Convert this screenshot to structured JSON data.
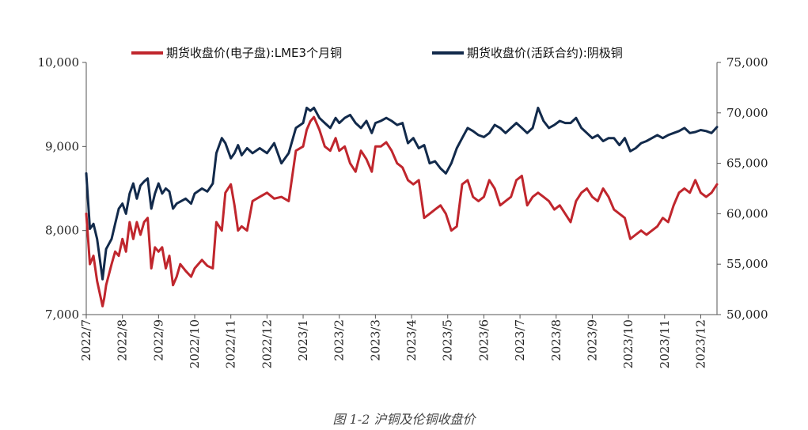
{
  "chart_data": {
    "type": "line",
    "caption": "图 1-2 沪铜及伦铜收盘价",
    "left_axis": {
      "ylim": [
        7000,
        10000
      ],
      "ticks": [
        7000,
        8000,
        9000,
        10000
      ],
      "tick_labels": [
        "7,000",
        "8,000",
        "9,000",
        "10,000"
      ]
    },
    "right_axis": {
      "ylim": [
        50000,
        75000
      ],
      "ticks": [
        50000,
        55000,
        60000,
        65000,
        70000,
        75000
      ],
      "tick_labels": [
        "50,000",
        "55,000",
        "60,000",
        "65,000",
        "70,000",
        "75,000"
      ]
    },
    "x_range": [
      0,
      17.45
    ],
    "x_ticks": [
      0,
      1,
      2,
      3,
      4,
      5,
      6,
      7,
      8,
      9,
      10,
      11,
      12,
      13,
      14,
      15,
      16,
      17
    ],
    "x_tick_labels": [
      "2022/7",
      "2022/8",
      "2022/9",
      "2022/10",
      "2022/11",
      "2022/12",
      "2023/1",
      "2023/2",
      "2023/3",
      "2023/4",
      "2023/5",
      "2023/6",
      "2023/7",
      "2023/8",
      "2023/9",
      "2023/10",
      "2023/11",
      "2023/12"
    ],
    "series": [
      {
        "name": "期货收盘价(电子盘):LME3个月铜",
        "axis": "left",
        "color": "#c0262d",
        "x": [
          0,
          0.1,
          0.2,
          0.3,
          0.45,
          0.5,
          0.55,
          0.7,
          0.8,
          0.9,
          1.0,
          1.1,
          1.2,
          1.3,
          1.4,
          1.5,
          1.6,
          1.7,
          1.8,
          1.9,
          2.0,
          2.1,
          2.2,
          2.3,
          2.4,
          2.5,
          2.6,
          2.75,
          2.9,
          3.0,
          3.2,
          3.35,
          3.5,
          3.6,
          3.75,
          3.85,
          4.0,
          4.1,
          4.2,
          4.3,
          4.45,
          4.6,
          4.8,
          5.0,
          5.2,
          5.4,
          5.6,
          5.8,
          6.0,
          6.1,
          6.2,
          6.3,
          6.45,
          6.6,
          6.75,
          6.9,
          7.0,
          7.15,
          7.3,
          7.45,
          7.6,
          7.75,
          7.9,
          8.0,
          8.15,
          8.3,
          8.45,
          8.6,
          8.75,
          8.9,
          9.05,
          9.2,
          9.35,
          9.5,
          9.65,
          9.8,
          9.95,
          10.1,
          10.25,
          10.4,
          10.55,
          10.7,
          10.85,
          11.0,
          11.15,
          11.3,
          11.45,
          11.6,
          11.75,
          11.9,
          12.05,
          12.2,
          12.35,
          12.5,
          12.65,
          12.8,
          12.95,
          13.1,
          13.25,
          13.4,
          13.55,
          13.7,
          13.85,
          14.0,
          14.15,
          14.3,
          14.45,
          14.6,
          14.75,
          14.9,
          15.05,
          15.2,
          15.35,
          15.5,
          15.65,
          15.8,
          15.95,
          16.1,
          16.25,
          16.4,
          16.55,
          16.7,
          16.85,
          17.0,
          17.15,
          17.3,
          17.45
        ],
        "values": [
          8200,
          7600,
          7700,
          7400,
          7100,
          7200,
          7350,
          7600,
          7750,
          7700,
          7900,
          7750,
          8100,
          7900,
          8100,
          7950,
          8100,
          8150,
          7550,
          7800,
          7750,
          7800,
          7550,
          7700,
          7350,
          7450,
          7600,
          7520,
          7450,
          7550,
          7650,
          7580,
          7550,
          8100,
          8000,
          8450,
          8550,
          8300,
          8000,
          8050,
          8000,
          8350,
          8400,
          8450,
          8380,
          8400,
          8350,
          8950,
          9000,
          9200,
          9300,
          9350,
          9200,
          9000,
          8950,
          9100,
          8950,
          9000,
          8800,
          8700,
          8950,
          8850,
          8700,
          9000,
          9000,
          9050,
          8950,
          8800,
          8750,
          8600,
          8550,
          8600,
          8150,
          8200,
          8250,
          8300,
          8200,
          8000,
          8050,
          8550,
          8600,
          8400,
          8350,
          8400,
          8600,
          8500,
          8300,
          8350,
          8400,
          8600,
          8650,
          8300,
          8400,
          8450,
          8400,
          8350,
          8250,
          8300,
          8200,
          8100,
          8350,
          8450,
          8500,
          8400,
          8350,
          8500,
          8400,
          8250,
          8200,
          8150,
          7900,
          7950,
          8000,
          7950,
          8000,
          8050,
          8150,
          8100,
          8300,
          8450,
          8500,
          8450,
          8600,
          8450,
          8400,
          8450,
          8550
        ]
      },
      {
        "name": "期货收盘价(活跃合约):阴极铜",
        "axis": "right",
        "color": "#122a4b",
        "x": [
          0,
          0.1,
          0.2,
          0.3,
          0.45,
          0.5,
          0.55,
          0.7,
          0.8,
          0.9,
          1.0,
          1.1,
          1.2,
          1.3,
          1.4,
          1.5,
          1.6,
          1.7,
          1.8,
          1.9,
          2.0,
          2.1,
          2.2,
          2.3,
          2.4,
          2.5,
          2.6,
          2.75,
          2.9,
          3.0,
          3.2,
          3.35,
          3.5,
          3.6,
          3.75,
          3.85,
          4.0,
          4.1,
          4.2,
          4.3,
          4.45,
          4.6,
          4.8,
          5.0,
          5.2,
          5.4,
          5.6,
          5.8,
          6.0,
          6.1,
          6.2,
          6.3,
          6.45,
          6.6,
          6.75,
          6.9,
          7.0,
          7.15,
          7.3,
          7.45,
          7.6,
          7.75,
          7.9,
          8.0,
          8.15,
          8.3,
          8.45,
          8.6,
          8.75,
          8.9,
          9.05,
          9.2,
          9.35,
          9.5,
          9.65,
          9.8,
          9.95,
          10.1,
          10.25,
          10.4,
          10.55,
          10.7,
          10.85,
          11.0,
          11.15,
          11.3,
          11.45,
          11.6,
          11.75,
          11.9,
          12.05,
          12.2,
          12.35,
          12.5,
          12.65,
          12.8,
          12.95,
          13.1,
          13.25,
          13.4,
          13.55,
          13.7,
          13.85,
          14.0,
          14.15,
          14.3,
          14.45,
          14.6,
          14.75,
          14.9,
          15.05,
          15.2,
          15.35,
          15.5,
          15.65,
          15.8,
          15.95,
          16.1,
          16.25,
          16.4,
          16.55,
          16.7,
          16.85,
          17.0,
          17.15,
          17.3,
          17.45
        ],
        "values": [
          64000,
          58500,
          59000,
          57500,
          53500,
          55000,
          56500,
          57500,
          59000,
          60500,
          61000,
          60000,
          62000,
          63000,
          61500,
          62800,
          63200,
          63500,
          60500,
          62000,
          63000,
          62000,
          62500,
          62200,
          60500,
          61000,
          61200,
          61500,
          61000,
          62000,
          62500,
          62200,
          63000,
          66000,
          67500,
          67000,
          65500,
          66000,
          66800,
          65800,
          66500,
          66000,
          66500,
          66000,
          67000,
          65000,
          66000,
          68500,
          69000,
          70500,
          70200,
          70500,
          69500,
          69000,
          68500,
          69500,
          69000,
          69500,
          69800,
          69000,
          68500,
          69200,
          68000,
          69000,
          69200,
          69500,
          69200,
          68800,
          69000,
          67000,
          67500,
          66500,
          66800,
          65000,
          65200,
          64500,
          64000,
          65000,
          66500,
          67500,
          68500,
          68200,
          67800,
          67600,
          68000,
          68800,
          68500,
          68000,
          68500,
          69000,
          68500,
          68000,
          68500,
          70500,
          69200,
          68500,
          68800,
          69200,
          69000,
          69000,
          69500,
          68500,
          68000,
          67500,
          67800,
          67200,
          67500,
          67500,
          66800,
          67500,
          66200,
          66500,
          67000,
          67200,
          67500,
          67800,
          67500,
          67800,
          68000,
          68200,
          68500,
          68000,
          68100,
          68300,
          68200,
          68000,
          68600
        ]
      }
    ]
  }
}
